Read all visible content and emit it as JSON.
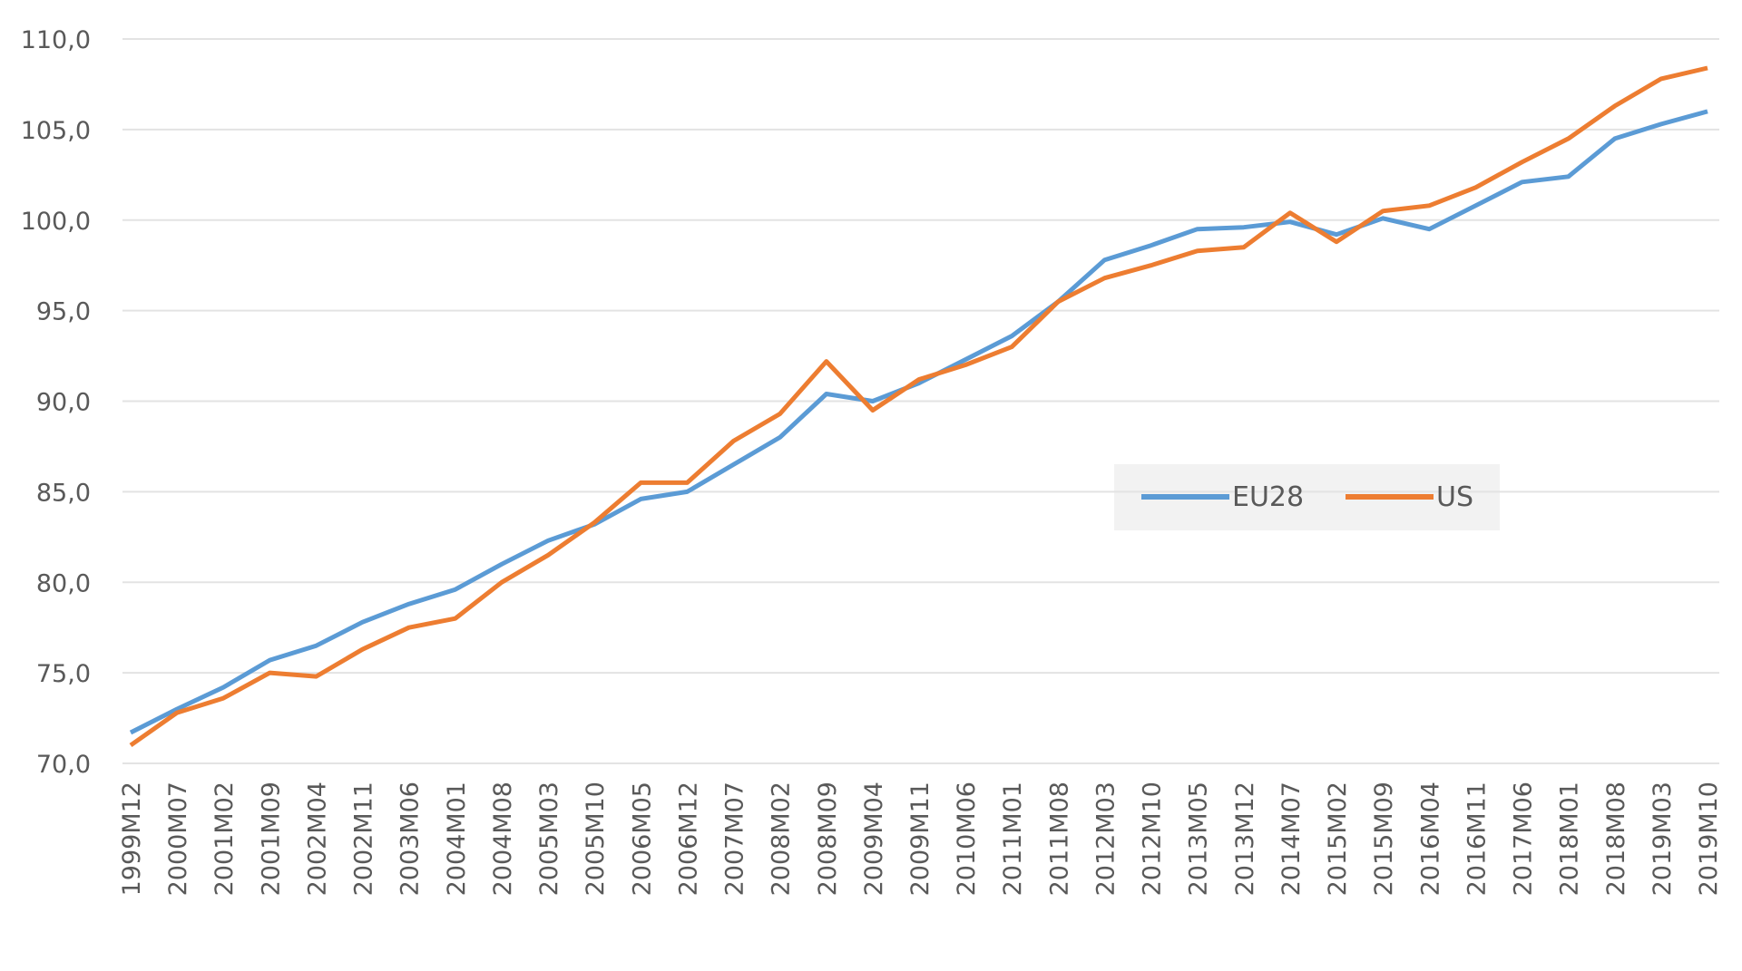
{
  "chart_data": {
    "type": "line",
    "categories": [
      "1999M12",
      "2000M07",
      "2001M02",
      "2001M09",
      "2002M04",
      "2002M11",
      "2003M06",
      "2004M01",
      "2004M08",
      "2005M03",
      "2005M10",
      "2006M05",
      "2006M12",
      "2007M07",
      "2008M02",
      "2008M09",
      "2009M04",
      "2009M11",
      "2010M06",
      "2011M01",
      "2011M08",
      "2012M03",
      "2012M10",
      "2013M05",
      "2013M12",
      "2014M07",
      "2015M02",
      "2015M09",
      "2016M04",
      "2016M11",
      "2017M06",
      "2018M01",
      "2018M08",
      "2019M03",
      "2019M10"
    ],
    "series": [
      {
        "name": "EU28",
        "color": "#5b9bd5",
        "values": [
          71.7,
          73.0,
          74.2,
          75.7,
          76.5,
          77.8,
          78.8,
          79.6,
          81.0,
          82.3,
          83.2,
          84.6,
          85.0,
          86.5,
          88.0,
          90.4,
          90.0,
          91.0,
          92.3,
          93.6,
          95.5,
          97.8,
          98.6,
          99.5,
          99.6,
          99.9,
          99.2,
          100.1,
          99.5,
          100.8,
          102.1,
          102.4,
          104.5,
          105.3,
          106.0
        ]
      },
      {
        "name": "US",
        "color": "#ed7d31",
        "values": [
          71.0,
          72.8,
          73.6,
          75.0,
          74.8,
          76.3,
          77.5,
          78.0,
          80.0,
          81.5,
          83.3,
          85.5,
          85.5,
          87.8,
          89.3,
          92.2,
          89.5,
          91.2,
          92.0,
          93.0,
          95.5,
          96.8,
          97.5,
          98.3,
          98.5,
          100.4,
          98.8,
          100.5,
          100.8,
          101.8,
          103.2,
          104.5,
          106.3,
          107.8,
          108.4
        ]
      }
    ],
    "ylim": [
      70,
      110
    ],
    "yticks": [
      {
        "value": 70,
        "label": "70,0"
      },
      {
        "value": 75,
        "label": "75,0"
      },
      {
        "value": 80,
        "label": "80,0"
      },
      {
        "value": 85,
        "label": "85,0"
      },
      {
        "value": 90,
        "label": "90,0"
      },
      {
        "value": 95,
        "label": "95,0"
      },
      {
        "value": 100,
        "label": "100,0"
      },
      {
        "value": 105,
        "label": "105,0"
      },
      {
        "value": 110,
        "label": "110,0"
      }
    ],
    "grid": true
  }
}
